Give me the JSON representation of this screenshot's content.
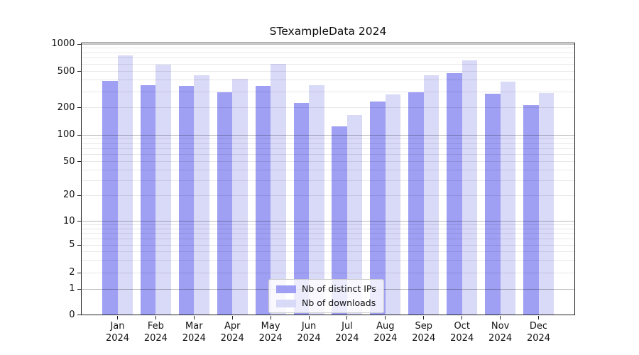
{
  "chart_data": {
    "type": "bar",
    "title": "STexampleData 2024",
    "categories": [
      "Jan 2024",
      "Feb 2024",
      "Mar 2024",
      "Apr 2024",
      "May 2024",
      "Jun 2024",
      "Jul 2024",
      "Aug 2024",
      "Sep 2024",
      "Oct 2024",
      "Nov 2024",
      "Dec 2024"
    ],
    "series": [
      {
        "name": "Nb of distinct IPs",
        "color": "#9f9ff3",
        "values": [
          390,
          355,
          345,
          295,
          345,
          225,
          125,
          235,
          295,
          475,
          285,
          215
        ]
      },
      {
        "name": "Nb of downloads",
        "color": "#d9d9f8",
        "values": [
          750,
          590,
          455,
          415,
          605,
          350,
          165,
          280,
          455,
          660,
          385,
          290
        ]
      }
    ],
    "xlabel": "",
    "ylabel": "",
    "yscale": "symlog",
    "ylim": [
      0,
      1000
    ],
    "y_tick_values": [
      0,
      1,
      2,
      5,
      10,
      20,
      50,
      100,
      200,
      500,
      1000
    ],
    "y_tick_labels": [
      "0",
      "1",
      "2",
      "5",
      "10",
      "20",
      "50",
      "100",
      "200",
      "500",
      "1000"
    ],
    "grid": true,
    "legend_position": "lower center"
  }
}
